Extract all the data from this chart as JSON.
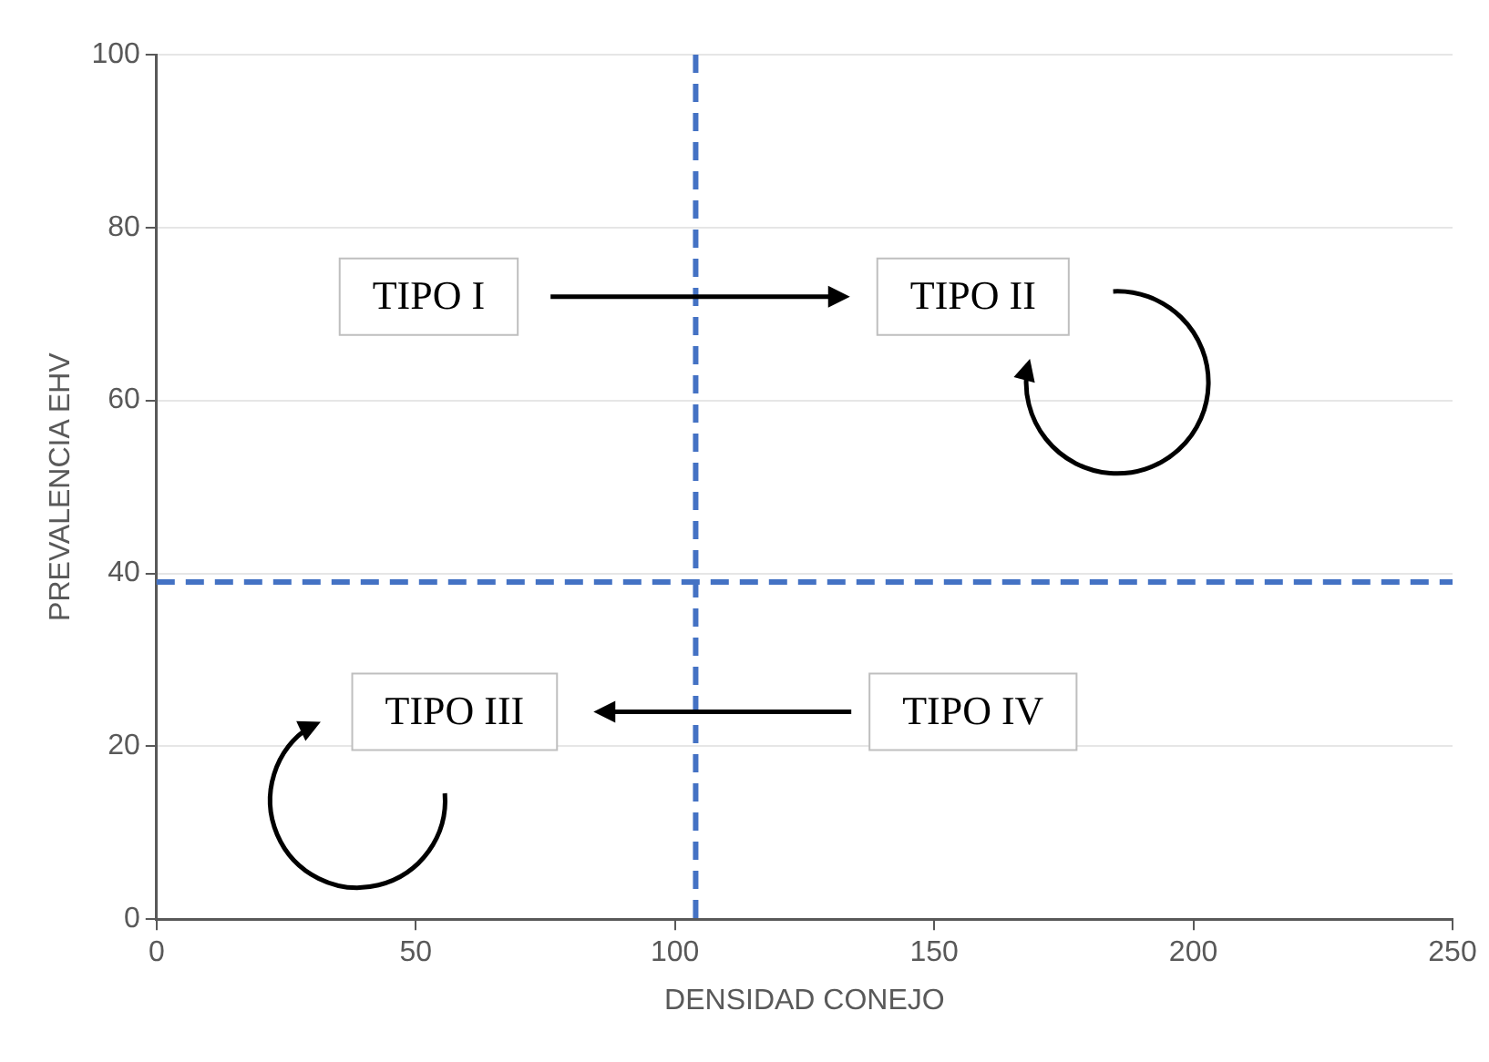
{
  "chart_data": {
    "type": "scatter",
    "xlabel": "DENSIDAD CONEJO",
    "ylabel": "PREVALENCIA EHV",
    "xlim": [
      0,
      250
    ],
    "xticks": [
      0,
      50,
      100,
      150,
      200,
      250
    ],
    "ylim": [
      0,
      100
    ],
    "yticks": [
      0,
      20,
      40,
      60,
      80,
      100
    ],
    "grid": "y",
    "ref_lines": [
      {
        "axis": "x",
        "value": 104,
        "color": "#4472c4",
        "line_style": "dashed"
      },
      {
        "axis": "y",
        "value": 39,
        "color": "#4472c4",
        "line_style": "dashed"
      }
    ],
    "annotations": [
      "TIPO I",
      "TIPO II",
      "TIPO III",
      "TIPO IV"
    ]
  }
}
